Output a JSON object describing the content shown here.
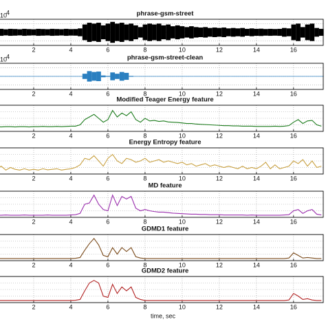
{
  "chart_data": [
    {
      "type": "waveform",
      "title": "phrase-gsm-street",
      "y_multiplier": {
        "base": "10",
        "power": "4"
      },
      "color": "#000000",
      "x": [
        0,
        0.25,
        0.5,
        0.75,
        1,
        1.25,
        1.5,
        1.75,
        2,
        2.25,
        2.5,
        2.75,
        3,
        3.25,
        3.5,
        3.75,
        4,
        4.25,
        4.5,
        4.75,
        5,
        5.25,
        5.5,
        5.75,
        6,
        6.25,
        6.5,
        6.75,
        7,
        7.25,
        7.5,
        7.75,
        8,
        8.25,
        8.5,
        8.75,
        9,
        9.25,
        9.5,
        9.75,
        10,
        10.25,
        10.5,
        10.75,
        11,
        11.25,
        11.5,
        11.75,
        12,
        12.25,
        12.5,
        12.75,
        13,
        13.25,
        13.5,
        13.75,
        14,
        14.25,
        14.5,
        14.75,
        15,
        15.25,
        15.5,
        15.75,
        16,
        16.25,
        16.5,
        16.75,
        17,
        17.25,
        17.5
      ],
      "values": [
        0.35,
        0.4,
        0.35,
        0.4,
        0.38,
        0.35,
        0.4,
        0.37,
        0.35,
        0.4,
        0.38,
        0.36,
        0.4,
        0.38,
        0.36,
        0.4,
        0.37,
        0.38,
        0.45,
        0.9,
        1.1,
        1.0,
        1.1,
        0.8,
        1.0,
        1.2,
        1.0,
        1.1,
        0.9,
        1.0,
        0.8,
        0.6,
        0.9,
        1.0,
        0.9,
        1.0,
        0.8,
        0.9,
        0.7,
        0.8,
        0.7,
        0.6,
        0.7,
        0.6,
        0.55,
        0.6,
        0.5,
        0.55,
        0.5,
        0.55,
        0.45,
        0.5,
        0.45,
        0.5,
        0.4,
        0.45,
        0.4,
        0.42,
        0.38,
        0.4,
        0.38,
        0.4,
        0.5,
        0.45,
        0.9,
        1.0,
        0.6,
        0.9,
        1.0,
        0.5,
        0.4
      ],
      "xlim": [
        0,
        17.6
      ],
      "xticks": [
        2,
        4,
        6,
        8,
        10,
        12,
        14,
        16
      ],
      "ylim": [
        -1.5,
        1.5
      ],
      "yticks": [
        -1,
        0,
        1
      ],
      "grid": true
    },
    {
      "type": "waveform",
      "title": "phrase-gsm-street-clean",
      "y_multiplier": {
        "base": "10",
        "power": "4"
      },
      "color": "#2a7fc0",
      "x": [
        0,
        0.25,
        0.5,
        0.75,
        1,
        1.25,
        1.5,
        1.75,
        2,
        2.25,
        2.5,
        2.75,
        3,
        3.25,
        3.5,
        3.75,
        4,
        4.25,
        4.5,
        4.75,
        5,
        5.25,
        5.5,
        5.75,
        6,
        6.25,
        6.5,
        6.75,
        7,
        7.25,
        7.5,
        7.75,
        8,
        8.25,
        8.5,
        8.75,
        9,
        9.25,
        9.5,
        9.75,
        10,
        10.25,
        10.5,
        10.75,
        11,
        11.25,
        11.5,
        11.75,
        12,
        12.25,
        12.5,
        12.75,
        13,
        13.25,
        13.5,
        13.75,
        14,
        14.25,
        14.5,
        14.75,
        15,
        15.25,
        15.5,
        15.75,
        16,
        16.25,
        16.5,
        16.75,
        17,
        17.25,
        17.5
      ],
      "values": [
        0.03,
        0.03,
        0.03,
        0.03,
        0.03,
        0.03,
        0.03,
        0.03,
        0.03,
        0.03,
        0.03,
        0.03,
        0.03,
        0.03,
        0.03,
        0.03,
        0.03,
        0.03,
        0.03,
        0.3,
        0.6,
        0.5,
        0.55,
        0.1,
        0.05,
        0.45,
        0.3,
        0.5,
        0.4,
        0.05,
        0.03,
        0.03,
        0.03,
        0.03,
        0.03,
        0.03,
        0.03,
        0.03,
        0.03,
        0.03,
        0.03,
        0.03,
        0.03,
        0.03,
        0.03,
        0.03,
        0.03,
        0.03,
        0.03,
        0.03,
        0.03,
        0.03,
        0.03,
        0.03,
        0.03,
        0.03,
        0.03,
        0.03,
        0.03,
        0.03,
        0.03,
        0.03,
        0.03,
        0.03,
        0.03,
        0.03,
        0.03,
        0.03,
        0.03,
        0.03,
        0.03
      ],
      "xlim": [
        0,
        17.6
      ],
      "xticks": [
        2,
        4,
        6,
        8,
        10,
        12,
        14,
        16
      ],
      "ylim": [
        -1.5,
        1.5
      ],
      "yticks": [
        -1,
        0,
        1
      ],
      "grid": true
    },
    {
      "type": "line",
      "title": "Modified Teager Energy  feature",
      "color": "#1a7a1a",
      "x": [
        0,
        0.25,
        0.5,
        0.75,
        1,
        1.25,
        1.5,
        1.75,
        2,
        2.25,
        2.5,
        2.75,
        3,
        3.25,
        3.5,
        3.75,
        4,
        4.25,
        4.5,
        4.75,
        5,
        5.25,
        5.5,
        5.75,
        6,
        6.25,
        6.5,
        6.75,
        7,
        7.25,
        7.5,
        7.75,
        8,
        8.25,
        8.5,
        8.75,
        9,
        9.25,
        9.5,
        9.75,
        10,
        10.25,
        10.5,
        10.75,
        11,
        11.25,
        11.5,
        11.75,
        12,
        12.25,
        12.5,
        12.75,
        13,
        13.25,
        13.5,
        13.75,
        14,
        14.25,
        14.5,
        14.75,
        15,
        15.25,
        15.5,
        15.75,
        16,
        16.25,
        16.5,
        16.75,
        17,
        17.25,
        17.5
      ],
      "values": [
        0.18,
        0.17,
        0.18,
        0.18,
        0.17,
        0.18,
        0.18,
        0.17,
        0.18,
        0.18,
        0.19,
        0.18,
        0.18,
        0.19,
        0.18,
        0.19,
        0.2,
        0.2,
        0.25,
        0.45,
        0.55,
        0.65,
        0.5,
        0.35,
        0.45,
        0.8,
        0.55,
        0.7,
        0.6,
        0.75,
        0.45,
        0.35,
        0.5,
        0.4,
        0.42,
        0.38,
        0.4,
        0.36,
        0.35,
        0.34,
        0.32,
        0.3,
        0.3,
        0.28,
        0.27,
        0.26,
        0.25,
        0.24,
        0.23,
        0.22,
        0.22,
        0.21,
        0.21,
        0.2,
        0.2,
        0.2,
        0.19,
        0.19,
        0.19,
        0.19,
        0.2,
        0.19,
        0.2,
        0.22,
        0.35,
        0.45,
        0.3,
        0.4,
        0.42,
        0.25,
        0.2
      ],
      "xlim": [
        0,
        17.6
      ],
      "xticks": [
        2,
        4,
        6,
        8,
        10,
        12,
        14,
        16
      ],
      "ylim": [
        0,
        1
      ],
      "yticks": [
        0.25,
        0.5,
        0.75
      ],
      "grid": true
    },
    {
      "type": "line",
      "title": "Energy Entropy feature",
      "color": "#c8a040",
      "x": [
        0,
        0.25,
        0.5,
        0.75,
        1,
        1.25,
        1.5,
        1.75,
        2,
        2.25,
        2.5,
        2.75,
        3,
        3.25,
        3.5,
        3.75,
        4,
        4.25,
        4.5,
        4.75,
        5,
        5.25,
        5.5,
        5.75,
        6,
        6.25,
        6.5,
        6.75,
        7,
        7.25,
        7.5,
        7.75,
        8,
        8.25,
        8.5,
        8.75,
        9,
        9.25,
        9.5,
        9.75,
        10,
        10.25,
        10.5,
        10.75,
        11,
        11.25,
        11.5,
        11.75,
        12,
        12.25,
        12.5,
        12.75,
        13,
        13.25,
        13.5,
        13.75,
        14,
        14.25,
        14.5,
        14.75,
        15,
        15.25,
        15.5,
        15.75,
        16,
        16.25,
        16.5,
        16.75,
        17,
        17.25,
        17.5
      ],
      "values": [
        0.2,
        0.3,
        0.15,
        0.25,
        0.18,
        0.15,
        0.2,
        0.15,
        0.18,
        0.15,
        0.2,
        0.16,
        0.18,
        0.2,
        0.15,
        0.18,
        0.2,
        0.25,
        0.35,
        0.6,
        0.55,
        0.7,
        0.5,
        0.3,
        0.6,
        0.75,
        0.5,
        0.4,
        0.6,
        0.55,
        0.45,
        0.5,
        0.6,
        0.45,
        0.5,
        0.55,
        0.45,
        0.5,
        0.45,
        0.4,
        0.45,
        0.35,
        0.4,
        0.3,
        0.35,
        0.4,
        0.3,
        0.35,
        0.3,
        0.25,
        0.3,
        0.25,
        0.2,
        0.3,
        0.2,
        0.25,
        0.2,
        0.3,
        0.45,
        0.2,
        0.35,
        0.2,
        0.25,
        0.3,
        0.5,
        0.4,
        0.55,
        0.3,
        0.5,
        0.25,
        0.3
      ],
      "xlim": [
        0,
        17.6
      ],
      "xticks": [
        2,
        4,
        6,
        8,
        10,
        12,
        14,
        16
      ],
      "ylim": [
        0,
        1
      ],
      "yticks": [
        0.25,
        0.5,
        0.75
      ],
      "grid": true
    },
    {
      "type": "line",
      "title": "MD feature",
      "color": "#9b2fae",
      "x": [
        0,
        0.25,
        0.5,
        0.75,
        1,
        1.25,
        1.5,
        1.75,
        2,
        2.25,
        2.5,
        2.75,
        3,
        3.25,
        3.5,
        3.75,
        4,
        4.25,
        4.5,
        4.75,
        5,
        5.25,
        5.5,
        5.75,
        6,
        6.25,
        6.5,
        6.75,
        7,
        7.25,
        7.5,
        7.75,
        8,
        8.25,
        8.5,
        8.75,
        9,
        9.25,
        9.5,
        9.75,
        10,
        10.25,
        10.5,
        10.75,
        11,
        11.25,
        11.5,
        11.75,
        12,
        12.25,
        12.5,
        12.75,
        13,
        13.25,
        13.5,
        13.75,
        14,
        14.25,
        14.5,
        14.75,
        15,
        15.25,
        15.5,
        15.75,
        16,
        16.25,
        16.5,
        16.75,
        17,
        17.25,
        17.5
      ],
      "values": [
        0.08,
        0.08,
        0.09,
        0.08,
        0.08,
        0.08,
        0.09,
        0.08,
        0.08,
        0.08,
        0.08,
        0.09,
        0.08,
        0.08,
        0.08,
        0.08,
        0.09,
        0.1,
        0.15,
        0.5,
        0.55,
        0.85,
        0.5,
        0.3,
        0.25,
        0.85,
        0.45,
        0.8,
        0.7,
        0.8,
        0.35,
        0.25,
        0.3,
        0.25,
        0.22,
        0.2,
        0.2,
        0.18,
        0.16,
        0.15,
        0.14,
        0.13,
        0.12,
        0.12,
        0.11,
        0.11,
        0.1,
        0.1,
        0.1,
        0.09,
        0.09,
        0.09,
        0.09,
        0.09,
        0.08,
        0.09,
        0.08,
        0.08,
        0.08,
        0.08,
        0.08,
        0.08,
        0.09,
        0.1,
        0.25,
        0.3,
        0.15,
        0.25,
        0.3,
        0.12,
        0.09
      ],
      "xlim": [
        0,
        17.6
      ],
      "xticks": [
        2,
        4,
        6,
        8,
        10,
        12,
        14,
        16
      ],
      "ylim": [
        0,
        1
      ],
      "yticks": [
        0.25,
        0.5,
        0.75
      ],
      "grid": true
    },
    {
      "type": "line",
      "title": "GDMD1  feature",
      "color": "#7a4a1a",
      "x": [
        0,
        0.25,
        0.5,
        0.75,
        1,
        1.25,
        1.5,
        1.75,
        2,
        2.25,
        2.5,
        2.75,
        3,
        3.25,
        3.5,
        3.75,
        4,
        4.25,
        4.5,
        4.75,
        5,
        5.25,
        5.5,
        5.75,
        6,
        6.25,
        6.5,
        6.75,
        7,
        7.25,
        7.5,
        7.75,
        8,
        8.25,
        8.5,
        8.75,
        9,
        9.25,
        9.5,
        9.75,
        10,
        10.25,
        10.5,
        10.75,
        11,
        11.25,
        11.5,
        11.75,
        12,
        12.25,
        12.5,
        12.75,
        13,
        13.25,
        13.5,
        13.75,
        14,
        14.25,
        14.5,
        14.75,
        15,
        15.25,
        15.5,
        15.75,
        16,
        16.25,
        16.5,
        16.75,
        17,
        17.25,
        17.5
      ],
      "values": [
        0.08,
        0.08,
        0.08,
        0.08,
        0.08,
        0.08,
        0.08,
        0.08,
        0.08,
        0.08,
        0.08,
        0.08,
        0.08,
        0.08,
        0.08,
        0.08,
        0.08,
        0.09,
        0.12,
        0.4,
        0.65,
        0.85,
        0.6,
        0.2,
        0.15,
        0.5,
        0.25,
        0.5,
        0.35,
        0.5,
        0.15,
        0.1,
        0.08,
        0.08,
        0.08,
        0.08,
        0.08,
        0.08,
        0.08,
        0.08,
        0.08,
        0.08,
        0.08,
        0.08,
        0.08,
        0.08,
        0.08,
        0.08,
        0.08,
        0.08,
        0.08,
        0.08,
        0.08,
        0.08,
        0.08,
        0.08,
        0.08,
        0.08,
        0.08,
        0.08,
        0.08,
        0.08,
        0.08,
        0.1,
        0.3,
        0.2,
        0.1,
        0.12,
        0.1,
        0.08,
        0.08
      ],
      "xlim": [
        0,
        17.6
      ],
      "xticks": [
        2,
        4,
        6,
        8,
        10,
        12,
        14,
        16
      ],
      "ylim": [
        0,
        1
      ],
      "yticks": [
        0.25,
        0.5,
        0.75
      ],
      "grid": true
    },
    {
      "type": "line",
      "title": "GDMD2  feature",
      "xlabel": "time, sec",
      "color": "#b22222",
      "x": [
        0,
        0.25,
        0.5,
        0.75,
        1,
        1.25,
        1.5,
        1.75,
        2,
        2.25,
        2.5,
        2.75,
        3,
        3.25,
        3.5,
        3.75,
        4,
        4.25,
        4.5,
        4.75,
        5,
        5.25,
        5.5,
        5.75,
        6,
        6.25,
        6.5,
        6.75,
        7,
        7.25,
        7.5,
        7.75,
        8,
        8.25,
        8.5,
        8.75,
        9,
        9.25,
        9.5,
        9.75,
        10,
        10.25,
        10.5,
        10.75,
        11,
        11.25,
        11.5,
        11.75,
        12,
        12.25,
        12.5,
        12.75,
        13,
        13.25,
        13.5,
        13.75,
        14,
        14.25,
        14.5,
        14.75,
        15,
        15.25,
        15.5,
        15.75,
        16,
        16.25,
        16.5,
        16.75,
        17,
        17.25,
        17.5
      ],
      "values": [
        0.08,
        0.08,
        0.08,
        0.08,
        0.08,
        0.08,
        0.08,
        0.08,
        0.08,
        0.08,
        0.08,
        0.08,
        0.08,
        0.08,
        0.08,
        0.08,
        0.08,
        0.09,
        0.12,
        0.45,
        0.75,
        0.85,
        0.75,
        0.25,
        0.2,
        0.7,
        0.35,
        0.6,
        0.45,
        0.6,
        0.2,
        0.12,
        0.08,
        0.08,
        0.08,
        0.08,
        0.08,
        0.08,
        0.08,
        0.08,
        0.08,
        0.08,
        0.08,
        0.08,
        0.08,
        0.08,
        0.08,
        0.08,
        0.08,
        0.08,
        0.08,
        0.08,
        0.08,
        0.08,
        0.08,
        0.08,
        0.08,
        0.08,
        0.08,
        0.08,
        0.08,
        0.08,
        0.08,
        0.1,
        0.35,
        0.25,
        0.12,
        0.15,
        0.1,
        0.08,
        0.08
      ],
      "xlim": [
        0,
        17.6
      ],
      "xticks": [
        2,
        4,
        6,
        8,
        10,
        12,
        14,
        16
      ],
      "ylim": [
        0,
        1
      ],
      "yticks": [
        0.25,
        0.5,
        0.75
      ],
      "grid": true
    }
  ]
}
